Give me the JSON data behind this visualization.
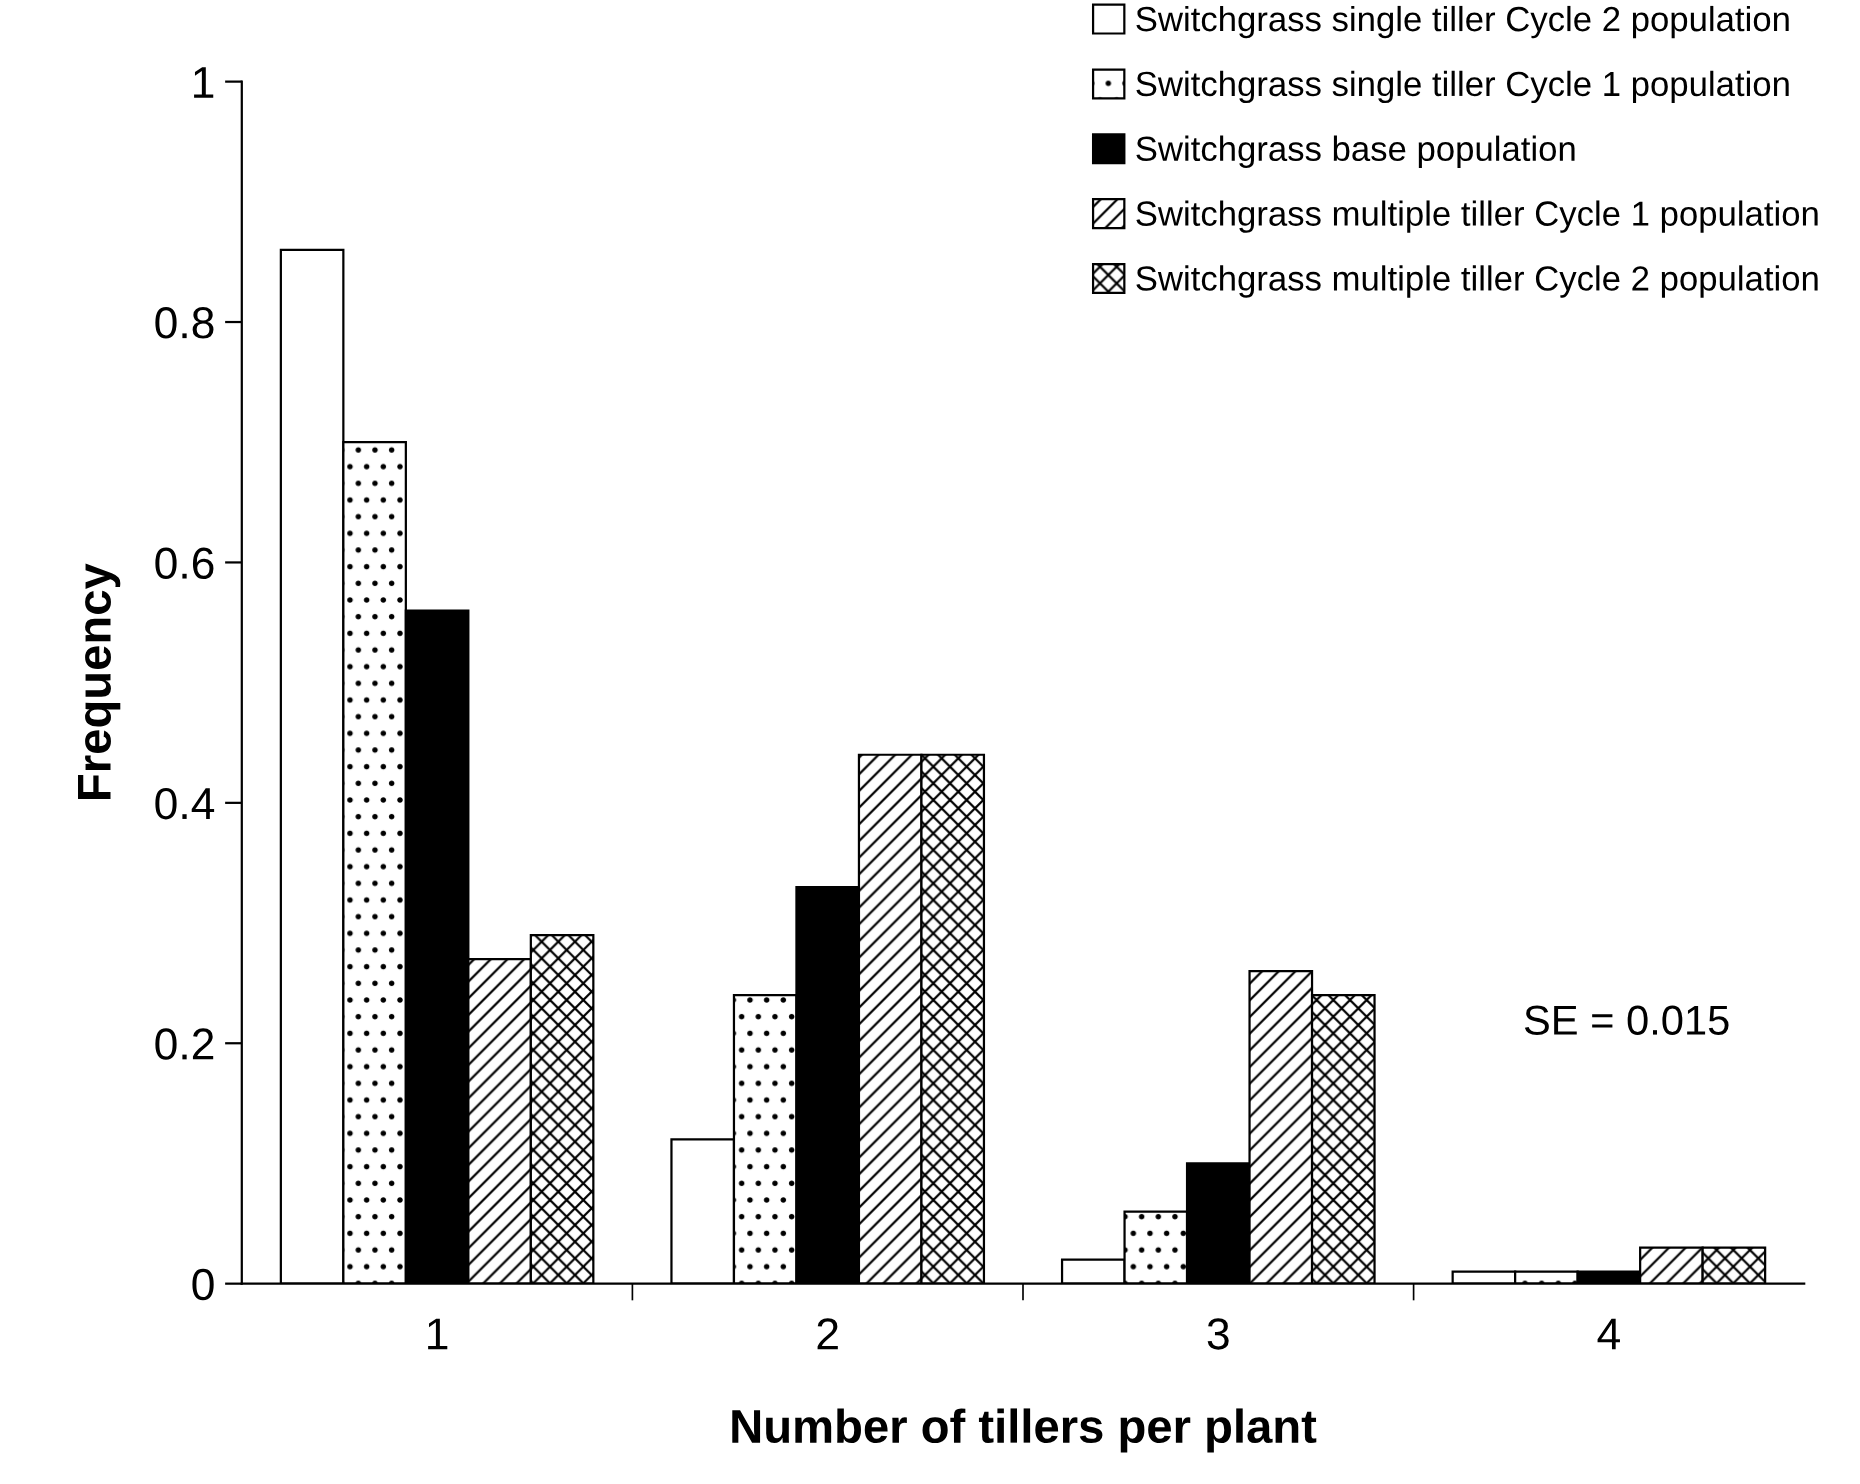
{
  "chart_data": {
    "type": "bar",
    "xlabel": "Number of tillers per plant",
    "ylabel": "Frequency",
    "categories": [
      "1",
      "2",
      "3",
      "4"
    ],
    "series": [
      {
        "name": "Switchgrass single tiller Cycle 2 population",
        "color": "#ffffff",
        "values": [
          0.86,
          0.12,
          0.02,
          0.01
        ]
      },
      {
        "name": "Switchgrass single tiller Cycle 1 population",
        "color": "#000000",
        "values": [
          0.7,
          0.24,
          0.06,
          0.01
        ]
      },
      {
        "name": "Switchgrass base population",
        "color": "#000000",
        "values": [
          0.56,
          0.33,
          0.1,
          0.01
        ]
      },
      {
        "name": "Switchgrass multiple tiller Cycle 1 population",
        "color": "#000000",
        "values": [
          0.27,
          0.44,
          0.26,
          0.03
        ]
      },
      {
        "name": "Switchgrass multiple tiller Cycle 2 population",
        "color": "#000000",
        "values": [
          0.29,
          0.44,
          0.24,
          0.03
        ]
      }
    ],
    "ylim": [
      0,
      1
    ],
    "yticks": [
      0,
      0.2,
      0.4,
      0.6,
      0.8,
      1
    ],
    "grid": false,
    "legend": "top right",
    "annotations": [
      "SE = 0.015"
    ]
  }
}
